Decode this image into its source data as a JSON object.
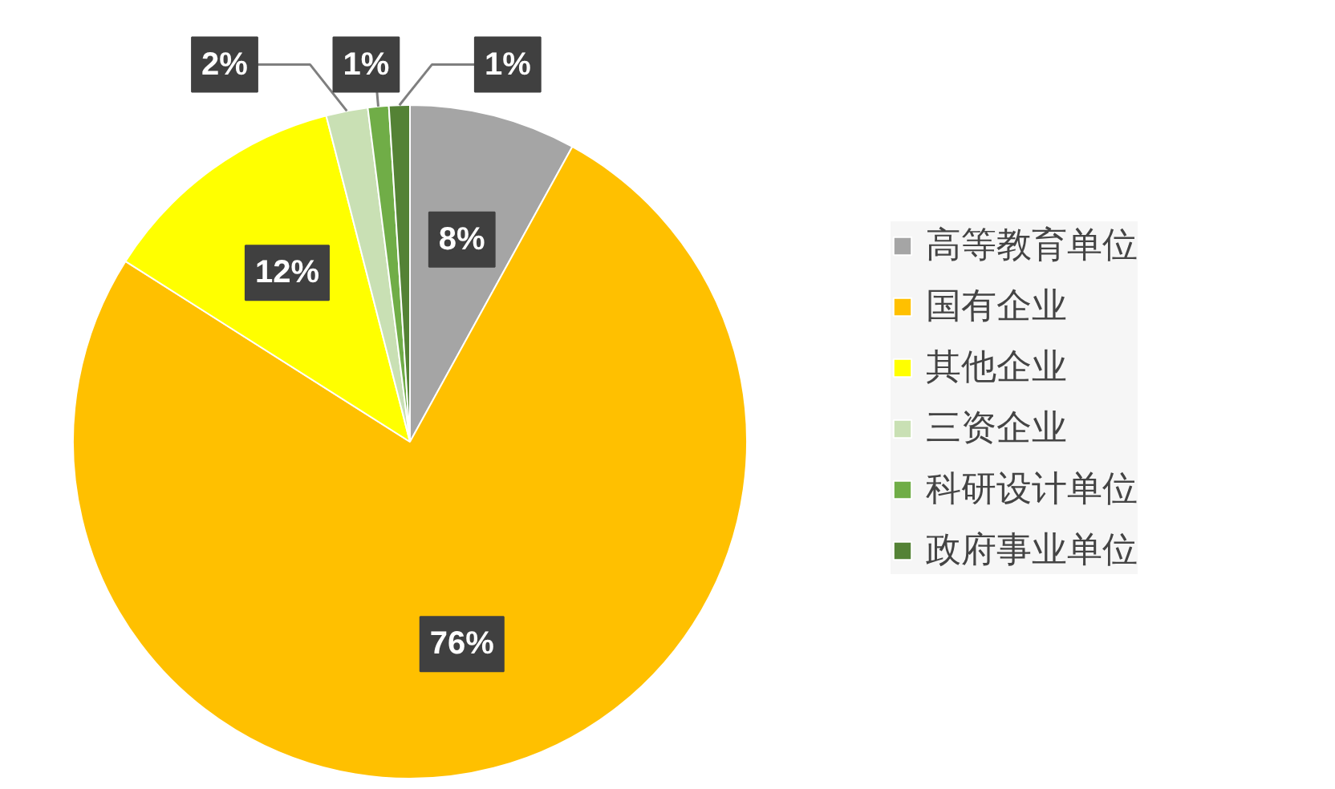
{
  "chart_data": {
    "type": "pie",
    "categories": [
      "高等教育单位",
      "国有企业",
      "其他企业",
      "三资企业",
      "科研设计单位",
      "政府事业单位"
    ],
    "values": [
      8,
      76,
      12,
      2,
      1,
      1
    ],
    "colors": [
      "#a5a5a5",
      "#ffc000",
      "#ffff00",
      "#c9e0b4",
      "#70ad47",
      "#548235"
    ],
    "value_labels": [
      "8%",
      "76%",
      "12%",
      "2%",
      "1%",
      "1%"
    ],
    "legend": "right"
  }
}
